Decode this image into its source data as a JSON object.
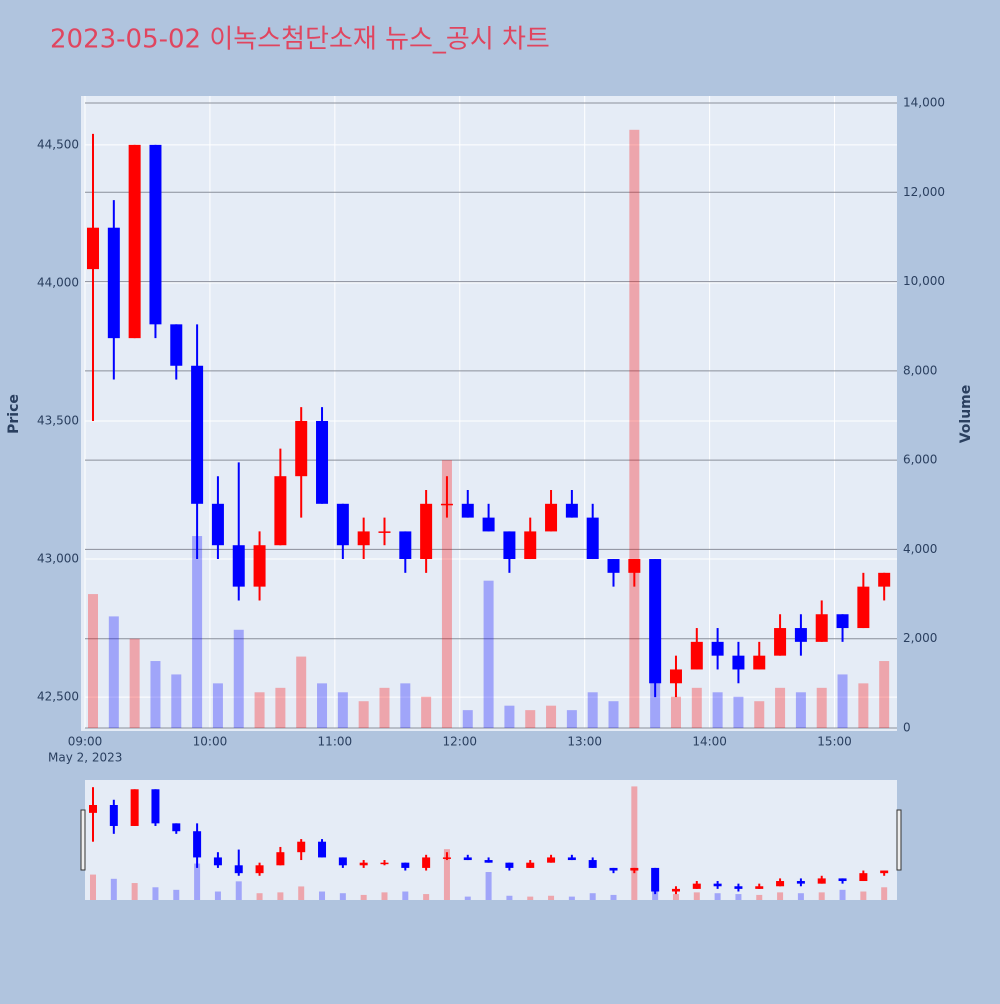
{
  "chart_data": {
    "type": "candlestick",
    "title": "2023-05-02 이녹스첨단소재 뉴스_공시 차트",
    "x": [
      "09:00",
      "09:10",
      "09:20",
      "09:30",
      "09:40",
      "09:50",
      "10:00",
      "10:10",
      "10:20",
      "10:30",
      "10:40",
      "10:50",
      "11:00",
      "11:10",
      "11:20",
      "11:30",
      "11:40",
      "11:50",
      "12:00",
      "12:10",
      "12:20",
      "12:30",
      "12:40",
      "12:50",
      "13:00",
      "13:10",
      "13:20",
      "13:30",
      "13:40",
      "13:50",
      "14:00",
      "14:10",
      "14:20",
      "14:30",
      "14:40",
      "14:50",
      "15:00",
      "15:10",
      "15:20"
    ],
    "open": [
      44050,
      44200,
      43800,
      44500,
      43850,
      43700,
      43200,
      43050,
      42900,
      43050,
      43300,
      43500,
      43200,
      43050,
      43100,
      43100,
      43000,
      43200,
      43200,
      43150,
      43100,
      43000,
      43100,
      43200,
      43150,
      43000,
      42950,
      43000,
      42550,
      42600,
      42700,
      42650,
      42600,
      42650,
      42750,
      42700,
      42800,
      42750,
      42900
    ],
    "high": [
      44540,
      44300,
      44500,
      44500,
      43850,
      43850,
      43300,
      43350,
      43100,
      43400,
      43550,
      43550,
      43200,
      43150,
      43150,
      43100,
      43250,
      43300,
      43250,
      43200,
      43100,
      43150,
      43250,
      43250,
      43200,
      43000,
      43000,
      43000,
      42650,
      42750,
      42750,
      42700,
      42700,
      42800,
      42800,
      42850,
      42800,
      42950,
      42950
    ],
    "low": [
      43500,
      43650,
      43800,
      43800,
      43650,
      43000,
      43000,
      42850,
      42850,
      43050,
      43150,
      43200,
      43000,
      43000,
      43050,
      42950,
      42950,
      43150,
      43150,
      43100,
      42950,
      43000,
      43100,
      43150,
      43000,
      42900,
      42900,
      42500,
      42500,
      42600,
      42600,
      42550,
      42600,
      42650,
      42650,
      42700,
      42700,
      42750,
      42850
    ],
    "close": [
      44200,
      43800,
      44500,
      43850,
      43700,
      43200,
      43050,
      42900,
      43050,
      43300,
      43500,
      43200,
      43050,
      43100,
      43100,
      43000,
      43200,
      43200,
      43150,
      43100,
      43000,
      43100,
      43200,
      43150,
      43000,
      42950,
      43000,
      42550,
      42600,
      42700,
      42650,
      42600,
      42650,
      42750,
      42700,
      42800,
      42750,
      42900,
      42950
    ],
    "volume": [
      3000,
      2500,
      2000,
      1500,
      1200,
      4300,
      1000,
      2200,
      800,
      900,
      1600,
      1000,
      800,
      600,
      900,
      1000,
      700,
      6000,
      400,
      3300,
      500,
      400,
      500,
      400,
      800,
      600,
      13400,
      1200,
      700,
      900,
      800,
      700,
      600,
      900,
      800,
      900,
      1200,
      1000,
      1500
    ],
    "increasing_color": "#ff0000",
    "decreasing_color": "#0000ff",
    "xlim": [
      "09:00",
      "15:30"
    ],
    "xticks": [
      "09:00",
      "10:00",
      "11:00",
      "12:00",
      "13:00",
      "14:00",
      "15:00"
    ],
    "x_sublabel": "May 2, 2023",
    "ylim": [
      42388,
      44677
    ],
    "yticks": [
      {
        "value": 42500,
        "label": "42,500"
      },
      {
        "value": 43000,
        "label": "43,000"
      },
      {
        "value": 43500,
        "label": "43,500"
      },
      {
        "value": 44000,
        "label": "44,000"
      },
      {
        "value": 44500,
        "label": "44,500"
      }
    ],
    "y2lim": [
      0,
      14157
    ],
    "y2ticks": [
      0,
      {
        "value": 2000,
        "label": "2,000"
      },
      {
        "value": 4000,
        "label": "4,000"
      },
      {
        "value": 6000,
        "label": "6,000"
      },
      {
        "value": 8000,
        "label": "8,000"
      },
      {
        "value": 10000,
        "label": "10,000"
      },
      {
        "value": 12000,
        "label": "12,000"
      },
      {
        "value": 14000,
        "label": "14,000"
      }
    ],
    "ylabel": "Price",
    "y2label": "Volume"
  }
}
